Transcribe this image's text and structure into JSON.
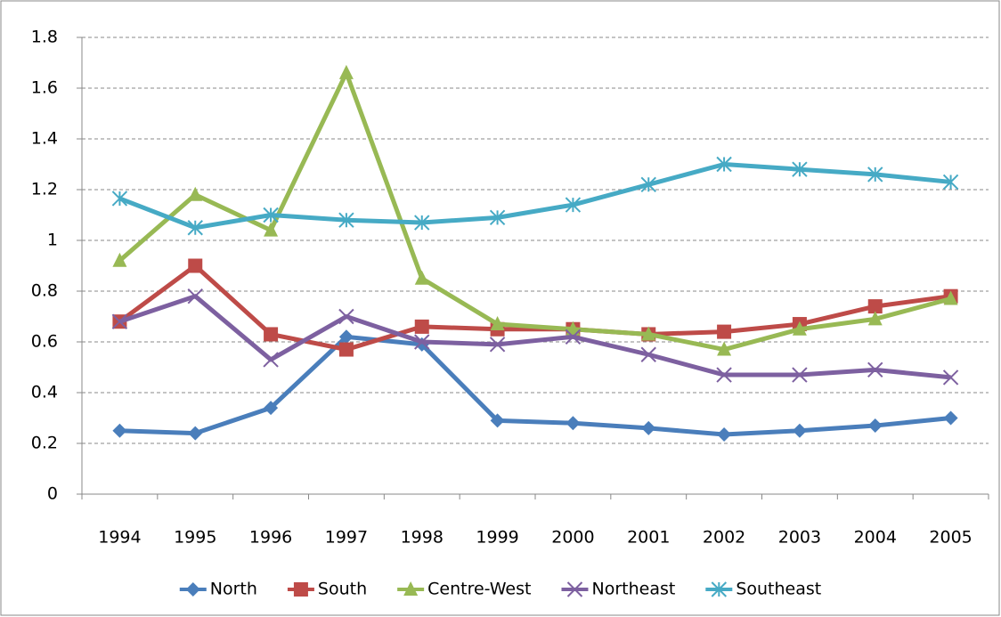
{
  "chart_data": {
    "type": "line",
    "categories": [
      "1994",
      "1995",
      "1996",
      "1997",
      "1998",
      "1999",
      "2000",
      "2001",
      "2002",
      "2003",
      "2004",
      "2005"
    ],
    "series": [
      {
        "name": "North",
        "color": "#4a7ebb",
        "marker": "diamond",
        "values": [
          0.25,
          0.24,
          0.34,
          0.62,
          0.59,
          0.29,
          0.28,
          0.26,
          0.235,
          0.25,
          0.27,
          0.3
        ]
      },
      {
        "name": "South",
        "color": "#be4b48",
        "marker": "square",
        "values": [
          0.68,
          0.9,
          0.63,
          0.57,
          0.66,
          0.65,
          0.65,
          0.63,
          0.64,
          0.67,
          0.74,
          0.78
        ]
      },
      {
        "name": "Centre-West",
        "color": "#98b954",
        "marker": "triangle",
        "values": [
          0.92,
          1.18,
          1.04,
          1.66,
          0.85,
          0.67,
          0.65,
          0.63,
          0.57,
          0.65,
          0.69,
          0.77
        ]
      },
      {
        "name": "Northeast",
        "color": "#7d60a0",
        "marker": "x",
        "values": [
          0.68,
          0.78,
          0.53,
          0.7,
          0.6,
          0.59,
          0.62,
          0.55,
          0.47,
          0.47,
          0.49,
          0.46
        ]
      },
      {
        "name": "Southeast",
        "color": "#46aac5",
        "marker": "star",
        "values": [
          1.165,
          1.05,
          1.1,
          1.08,
          1.07,
          1.09,
          1.14,
          1.22,
          1.3,
          1.28,
          1.26,
          1.23
        ]
      }
    ],
    "ylim": [
      0,
      1.8
    ],
    "yticks": [
      0,
      0.2,
      0.4,
      0.6,
      0.8,
      1,
      1.2,
      1.4,
      1.6,
      1.8
    ],
    "grid": true,
    "legend": "bottom"
  }
}
